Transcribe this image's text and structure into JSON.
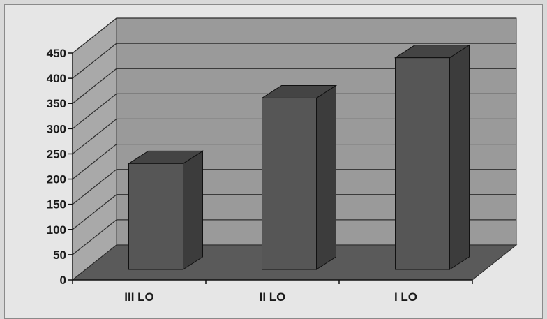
{
  "chart_data": {
    "type": "bar",
    "categories": [
      "III LO",
      "II LO",
      "I LO"
    ],
    "values": [
      210,
      340,
      420
    ],
    "ylim": [
      0,
      450
    ],
    "yticks": [
      0,
      50,
      100,
      150,
      200,
      250,
      300,
      350,
      400,
      450
    ],
    "grid": true,
    "legend": "none",
    "colors": {
      "bar_front": "#565656",
      "bar_top": "#444444",
      "bar_side": "#3c3c3c",
      "back_wall": "#9a9a9a",
      "side_wall": "#a9a9a9",
      "floor": "#5a5a5a",
      "gridline": "#2e2e2e"
    }
  }
}
